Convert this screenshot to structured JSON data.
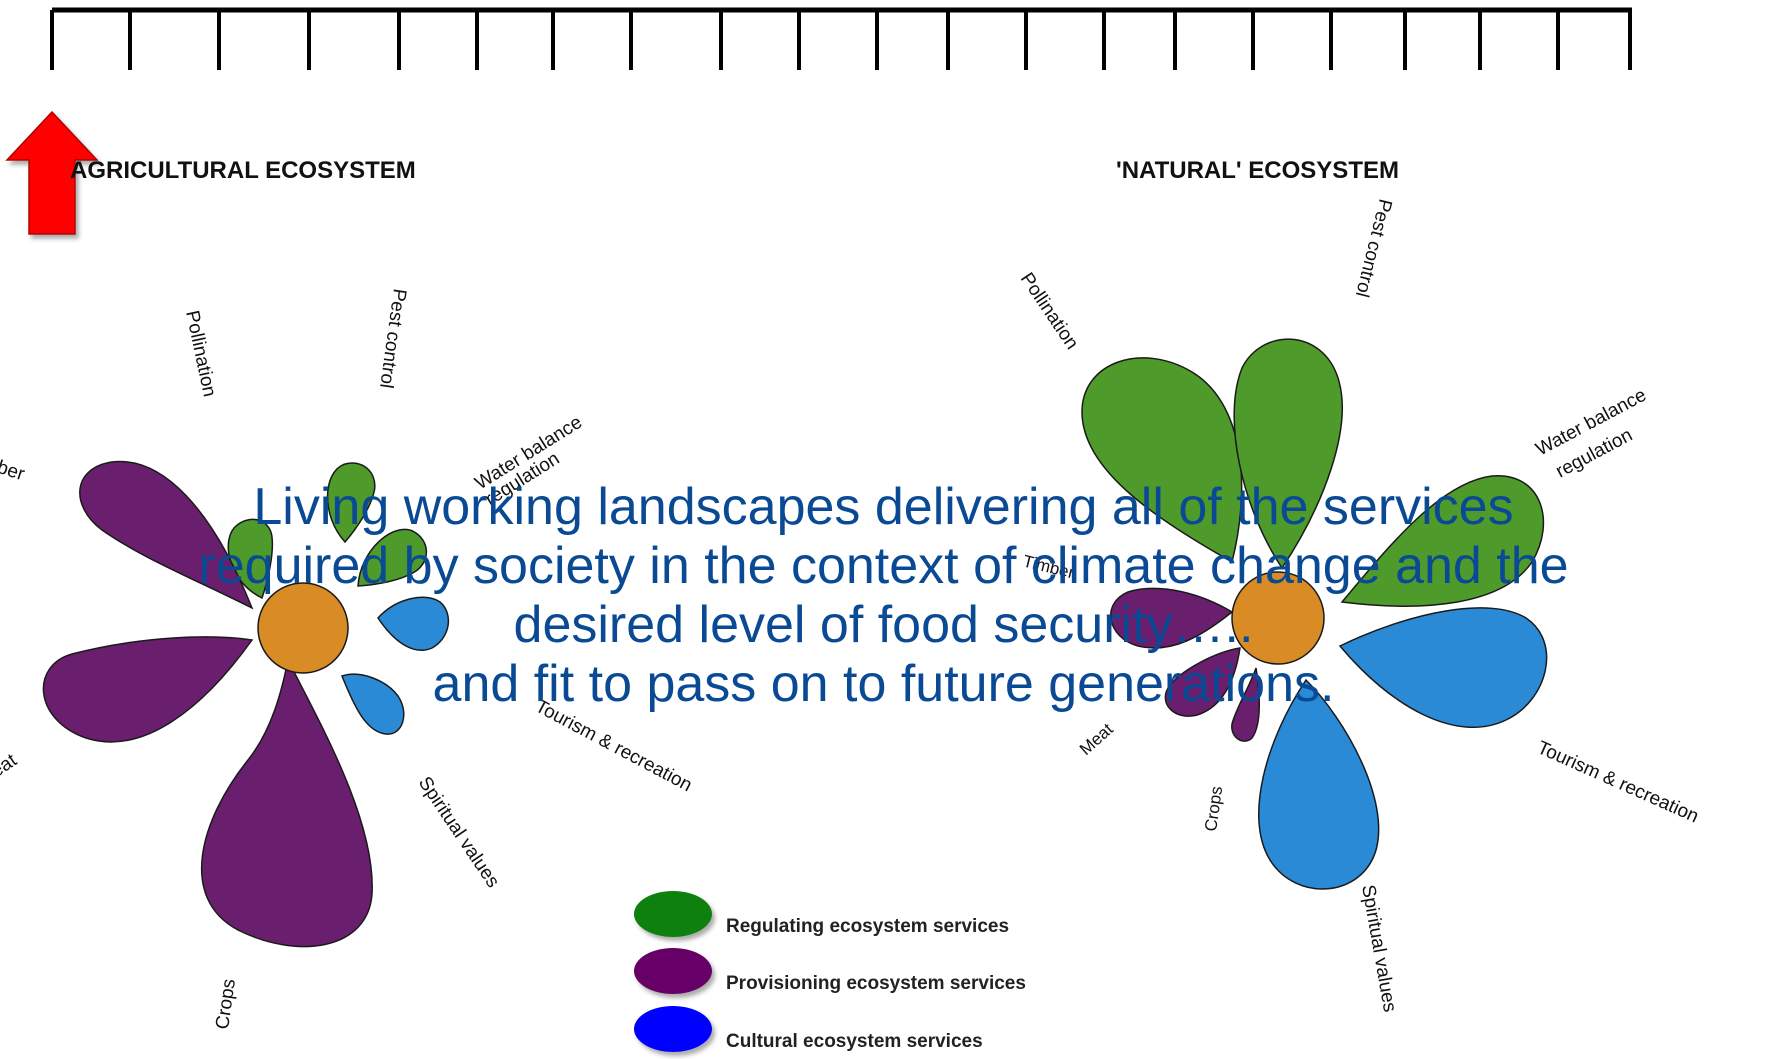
{
  "left_ecosystem": {
    "title": "AGRICULTURAL ECOSYSTEM",
    "labels": {
      "pollination": "Pollination",
      "pest_control": "Pest control",
      "water_balance_1": "Water balance",
      "water_balance_2": "regulation",
      "timber": "ber",
      "meat": "eat",
      "crops": "Crops",
      "tourism": "Tourism & recreation",
      "spiritual": "Spiritual values"
    }
  },
  "right_ecosystem": {
    "title": "'NATURAL' ECOSYSTEM",
    "labels": {
      "pollination": "Pollination",
      "pest_control": "Pest control",
      "water_balance_1": "Water balance",
      "water_balance_2": "regulation",
      "timber": "Timber",
      "meat": "Meat",
      "crops": "Crops",
      "tourism": "Tourism & recreation",
      "spiritual": "Spiritual values"
    }
  },
  "legend": [
    {
      "label": "Regulating ecosystem services",
      "color": "#108010"
    },
    {
      "label": "Provisioning ecosystem services",
      "color": "#660066"
    },
    {
      "label": "Cultural ecosystem services",
      "color": "#0000ff"
    }
  ],
  "overlay_text": {
    "line1": "Living working landscapes delivering all of the services",
    "line2": "required by society in the context of climate change and the",
    "line3": "desired level of food security…..",
    "line4": "and fit to pass on to future generations."
  },
  "colors": {
    "regulating": "#4e9a2a",
    "provisioning": "#6a1f6e",
    "cultural": "#2a8ad6",
    "center": "#d98c25",
    "arrow": "#ff0000",
    "overlay_text": "#0a4a94"
  }
}
